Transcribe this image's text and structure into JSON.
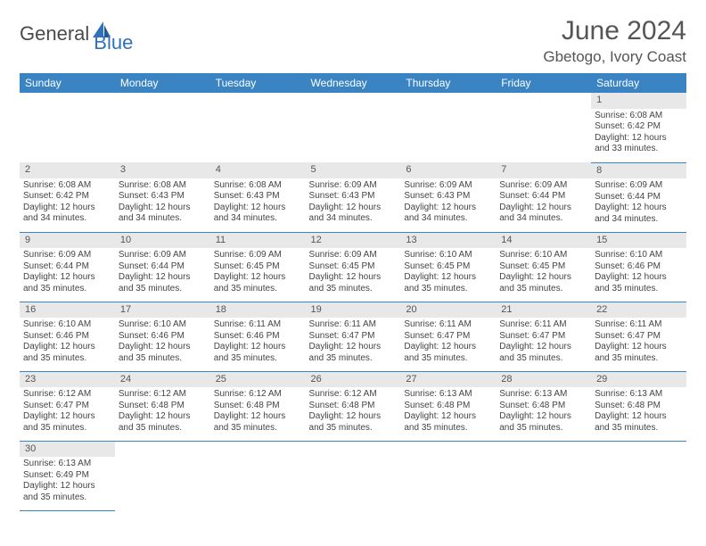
{
  "brand": {
    "main": "General",
    "accent": "Blue"
  },
  "title": "June 2024",
  "location": "Gbetogo, Ivory Coast",
  "colors": {
    "header_bg": "#3b84c4",
    "header_text": "#ffffff",
    "daynum_bg": "#e8e8e8",
    "row_border": "#3b84c4",
    "text": "#444444",
    "title_text": "#555555",
    "logo_accent": "#2f72b8"
  },
  "typography": {
    "title_fontsize": 30,
    "location_fontsize": 17,
    "dayhead_fontsize": 12,
    "cell_fontsize": 10,
    "daynum_fontsize": 11
  },
  "day_headers": [
    "Sunday",
    "Monday",
    "Tuesday",
    "Wednesday",
    "Thursday",
    "Friday",
    "Saturday"
  ],
  "weeks": [
    [
      null,
      null,
      null,
      null,
      null,
      null,
      {
        "n": "1",
        "sr": "Sunrise: 6:08 AM",
        "ss": "Sunset: 6:42 PM",
        "d1": "Daylight: 12 hours",
        "d2": "and 33 minutes."
      }
    ],
    [
      {
        "n": "2",
        "sr": "Sunrise: 6:08 AM",
        "ss": "Sunset: 6:42 PM",
        "d1": "Daylight: 12 hours",
        "d2": "and 34 minutes."
      },
      {
        "n": "3",
        "sr": "Sunrise: 6:08 AM",
        "ss": "Sunset: 6:43 PM",
        "d1": "Daylight: 12 hours",
        "d2": "and 34 minutes."
      },
      {
        "n": "4",
        "sr": "Sunrise: 6:08 AM",
        "ss": "Sunset: 6:43 PM",
        "d1": "Daylight: 12 hours",
        "d2": "and 34 minutes."
      },
      {
        "n": "5",
        "sr": "Sunrise: 6:09 AM",
        "ss": "Sunset: 6:43 PM",
        "d1": "Daylight: 12 hours",
        "d2": "and 34 minutes."
      },
      {
        "n": "6",
        "sr": "Sunrise: 6:09 AM",
        "ss": "Sunset: 6:43 PM",
        "d1": "Daylight: 12 hours",
        "d2": "and 34 minutes."
      },
      {
        "n": "7",
        "sr": "Sunrise: 6:09 AM",
        "ss": "Sunset: 6:44 PM",
        "d1": "Daylight: 12 hours",
        "d2": "and 34 minutes."
      },
      {
        "n": "8",
        "sr": "Sunrise: 6:09 AM",
        "ss": "Sunset: 6:44 PM",
        "d1": "Daylight: 12 hours",
        "d2": "and 34 minutes."
      }
    ],
    [
      {
        "n": "9",
        "sr": "Sunrise: 6:09 AM",
        "ss": "Sunset: 6:44 PM",
        "d1": "Daylight: 12 hours",
        "d2": "and 35 minutes."
      },
      {
        "n": "10",
        "sr": "Sunrise: 6:09 AM",
        "ss": "Sunset: 6:44 PM",
        "d1": "Daylight: 12 hours",
        "d2": "and 35 minutes."
      },
      {
        "n": "11",
        "sr": "Sunrise: 6:09 AM",
        "ss": "Sunset: 6:45 PM",
        "d1": "Daylight: 12 hours",
        "d2": "and 35 minutes."
      },
      {
        "n": "12",
        "sr": "Sunrise: 6:09 AM",
        "ss": "Sunset: 6:45 PM",
        "d1": "Daylight: 12 hours",
        "d2": "and 35 minutes."
      },
      {
        "n": "13",
        "sr": "Sunrise: 6:10 AM",
        "ss": "Sunset: 6:45 PM",
        "d1": "Daylight: 12 hours",
        "d2": "and 35 minutes."
      },
      {
        "n": "14",
        "sr": "Sunrise: 6:10 AM",
        "ss": "Sunset: 6:45 PM",
        "d1": "Daylight: 12 hours",
        "d2": "and 35 minutes."
      },
      {
        "n": "15",
        "sr": "Sunrise: 6:10 AM",
        "ss": "Sunset: 6:46 PM",
        "d1": "Daylight: 12 hours",
        "d2": "and 35 minutes."
      }
    ],
    [
      {
        "n": "16",
        "sr": "Sunrise: 6:10 AM",
        "ss": "Sunset: 6:46 PM",
        "d1": "Daylight: 12 hours",
        "d2": "and 35 minutes."
      },
      {
        "n": "17",
        "sr": "Sunrise: 6:10 AM",
        "ss": "Sunset: 6:46 PM",
        "d1": "Daylight: 12 hours",
        "d2": "and 35 minutes."
      },
      {
        "n": "18",
        "sr": "Sunrise: 6:11 AM",
        "ss": "Sunset: 6:46 PM",
        "d1": "Daylight: 12 hours",
        "d2": "and 35 minutes."
      },
      {
        "n": "19",
        "sr": "Sunrise: 6:11 AM",
        "ss": "Sunset: 6:47 PM",
        "d1": "Daylight: 12 hours",
        "d2": "and 35 minutes."
      },
      {
        "n": "20",
        "sr": "Sunrise: 6:11 AM",
        "ss": "Sunset: 6:47 PM",
        "d1": "Daylight: 12 hours",
        "d2": "and 35 minutes."
      },
      {
        "n": "21",
        "sr": "Sunrise: 6:11 AM",
        "ss": "Sunset: 6:47 PM",
        "d1": "Daylight: 12 hours",
        "d2": "and 35 minutes."
      },
      {
        "n": "22",
        "sr": "Sunrise: 6:11 AM",
        "ss": "Sunset: 6:47 PM",
        "d1": "Daylight: 12 hours",
        "d2": "and 35 minutes."
      }
    ],
    [
      {
        "n": "23",
        "sr": "Sunrise: 6:12 AM",
        "ss": "Sunset: 6:47 PM",
        "d1": "Daylight: 12 hours",
        "d2": "and 35 minutes."
      },
      {
        "n": "24",
        "sr": "Sunrise: 6:12 AM",
        "ss": "Sunset: 6:48 PM",
        "d1": "Daylight: 12 hours",
        "d2": "and 35 minutes."
      },
      {
        "n": "25",
        "sr": "Sunrise: 6:12 AM",
        "ss": "Sunset: 6:48 PM",
        "d1": "Daylight: 12 hours",
        "d2": "and 35 minutes."
      },
      {
        "n": "26",
        "sr": "Sunrise: 6:12 AM",
        "ss": "Sunset: 6:48 PM",
        "d1": "Daylight: 12 hours",
        "d2": "and 35 minutes."
      },
      {
        "n": "27",
        "sr": "Sunrise: 6:13 AM",
        "ss": "Sunset: 6:48 PM",
        "d1": "Daylight: 12 hours",
        "d2": "and 35 minutes."
      },
      {
        "n": "28",
        "sr": "Sunrise: 6:13 AM",
        "ss": "Sunset: 6:48 PM",
        "d1": "Daylight: 12 hours",
        "d2": "and 35 minutes."
      },
      {
        "n": "29",
        "sr": "Sunrise: 6:13 AM",
        "ss": "Sunset: 6:48 PM",
        "d1": "Daylight: 12 hours",
        "d2": "and 35 minutes."
      }
    ],
    [
      {
        "n": "30",
        "sr": "Sunrise: 6:13 AM",
        "ss": "Sunset: 6:49 PM",
        "d1": "Daylight: 12 hours",
        "d2": "and 35 minutes."
      },
      null,
      null,
      null,
      null,
      null,
      null
    ]
  ]
}
